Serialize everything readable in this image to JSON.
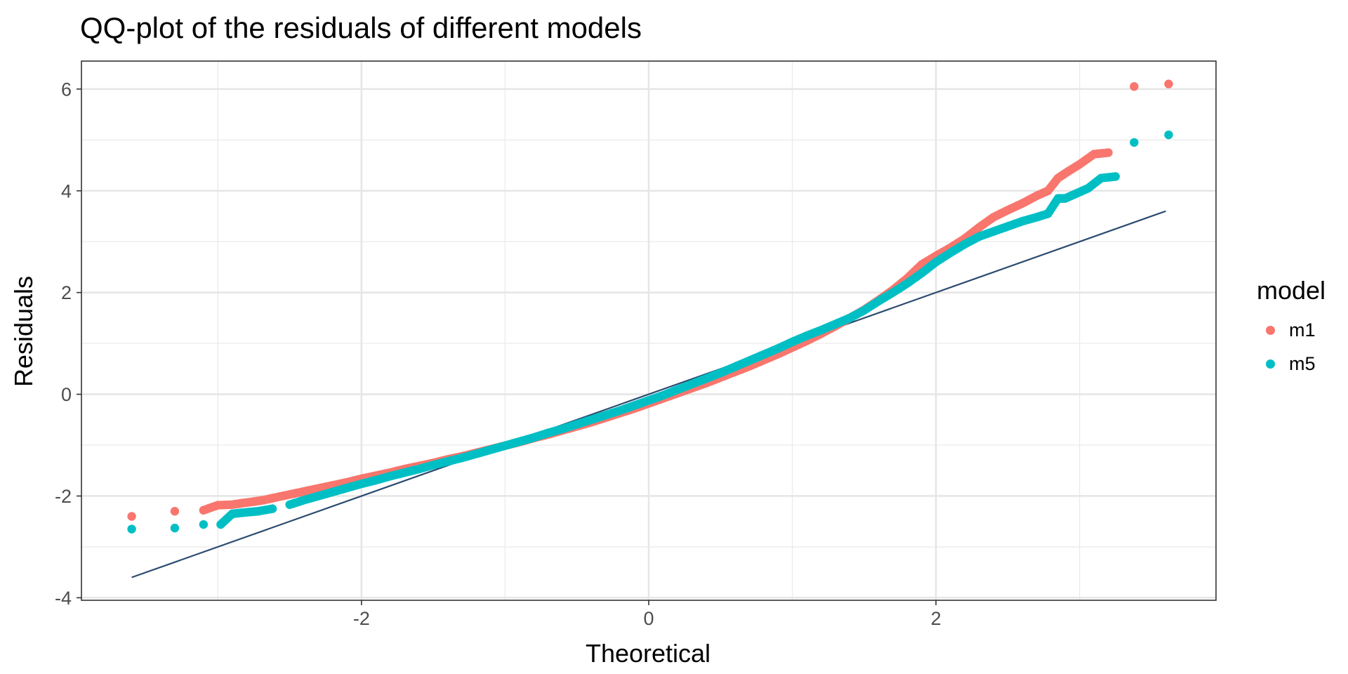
{
  "chart_data": {
    "type": "scatter",
    "title": "QQ-plot of the residuals of different models",
    "xlabel": "Theoretical",
    "ylabel": "Residuals",
    "xlim": [
      -3.95,
      3.95
    ],
    "ylim": [
      -4.05,
      6.55
    ],
    "x_ticks": [
      -2,
      0,
      2
    ],
    "x_tick_labels": [
      "-2",
      "0",
      "2"
    ],
    "y_ticks": [
      -4,
      -2,
      0,
      2,
      4,
      6
    ],
    "y_tick_labels": [
      "-4",
      "-2",
      "0",
      "2",
      "4",
      "6"
    ],
    "grid": true,
    "legend": {
      "title": "model",
      "position": "right"
    },
    "reference_line": {
      "x": [
        -3.6,
        3.6
      ],
      "y": [
        -3.6,
        3.6
      ],
      "color": "#2b4b6f"
    },
    "series": [
      {
        "name": "m1",
        "color": "#f8766d",
        "points": [
          [
            -3.6,
            -2.4
          ],
          [
            -3.3,
            -2.3
          ],
          [
            -3.1,
            -2.28
          ],
          [
            -3.0,
            -2.18
          ],
          [
            -2.9,
            -2.17
          ],
          [
            -2.83,
            -2.14
          ],
          [
            -2.75,
            -2.11
          ],
          [
            -2.68,
            -2.08
          ],
          [
            -2.6,
            -2.03
          ],
          [
            -2.5,
            -1.97
          ],
          [
            -2.4,
            -1.91
          ],
          [
            -2.3,
            -1.85
          ],
          [
            -2.2,
            -1.79
          ],
          [
            -2.1,
            -1.73
          ],
          [
            -2.0,
            -1.66
          ],
          [
            -1.9,
            -1.6
          ],
          [
            -1.8,
            -1.54
          ],
          [
            -1.7,
            -1.47
          ],
          [
            -1.6,
            -1.41
          ],
          [
            -1.5,
            -1.35
          ],
          [
            -1.4,
            -1.28
          ],
          [
            -1.3,
            -1.22
          ],
          [
            -1.2,
            -1.15
          ],
          [
            -1.1,
            -1.08
          ],
          [
            -1.0,
            -1.01
          ],
          [
            -0.9,
            -0.94
          ],
          [
            -0.8,
            -0.86
          ],
          [
            -0.7,
            -0.79
          ],
          [
            -0.6,
            -0.71
          ],
          [
            -0.5,
            -0.63
          ],
          [
            -0.4,
            -0.55
          ],
          [
            -0.3,
            -0.46
          ],
          [
            -0.2,
            -0.37
          ],
          [
            -0.1,
            -0.28
          ],
          [
            0.0,
            -0.18
          ],
          [
            0.1,
            -0.08
          ],
          [
            0.2,
            0.02
          ],
          [
            0.3,
            0.12
          ],
          [
            0.4,
            0.22
          ],
          [
            0.5,
            0.33
          ],
          [
            0.6,
            0.44
          ],
          [
            0.7,
            0.55
          ],
          [
            0.8,
            0.67
          ],
          [
            0.9,
            0.79
          ],
          [
            1.0,
            0.92
          ],
          [
            1.1,
            1.05
          ],
          [
            1.2,
            1.19
          ],
          [
            1.3,
            1.34
          ],
          [
            1.4,
            1.5
          ],
          [
            1.5,
            1.66
          ],
          [
            1.6,
            1.85
          ],
          [
            1.7,
            2.05
          ],
          [
            1.8,
            2.28
          ],
          [
            1.9,
            2.55
          ],
          [
            2.0,
            2.72
          ],
          [
            2.1,
            2.88
          ],
          [
            2.2,
            3.06
          ],
          [
            2.3,
            3.28
          ],
          [
            2.4,
            3.48
          ],
          [
            2.5,
            3.62
          ],
          [
            2.6,
            3.75
          ],
          [
            2.7,
            3.9
          ],
          [
            2.78,
            4.0
          ],
          [
            2.85,
            4.25
          ],
          [
            2.92,
            4.38
          ],
          [
            3.0,
            4.52
          ],
          [
            3.1,
            4.72
          ],
          [
            3.2,
            4.75
          ],
          [
            3.38,
            6.05
          ],
          [
            3.62,
            6.1
          ]
        ]
      },
      {
        "name": "m5",
        "color": "#00bfc4",
        "points": [
          [
            -3.6,
            -2.65
          ],
          [
            -3.3,
            -2.63
          ],
          [
            -3.1,
            -2.56
          ],
          [
            -2.98,
            -2.56
          ],
          [
            -2.9,
            -2.35
          ],
          [
            -2.8,
            -2.32
          ],
          [
            -2.72,
            -2.3
          ],
          [
            -2.62,
            -2.25
          ],
          [
            -2.5,
            -2.17
          ],
          [
            -2.4,
            -2.08
          ],
          [
            -2.3,
            -2.0
          ],
          [
            -2.2,
            -1.92
          ],
          [
            -2.1,
            -1.84
          ],
          [
            -2.0,
            -1.76
          ],
          [
            -1.9,
            -1.69
          ],
          [
            -1.8,
            -1.61
          ],
          [
            -1.7,
            -1.54
          ],
          [
            -1.6,
            -1.47
          ],
          [
            -1.5,
            -1.39
          ],
          [
            -1.4,
            -1.32
          ],
          [
            -1.3,
            -1.25
          ],
          [
            -1.2,
            -1.17
          ],
          [
            -1.1,
            -1.09
          ],
          [
            -1.0,
            -1.01
          ],
          [
            -0.9,
            -0.93
          ],
          [
            -0.8,
            -0.85
          ],
          [
            -0.7,
            -0.76
          ],
          [
            -0.6,
            -0.68
          ],
          [
            -0.5,
            -0.59
          ],
          [
            -0.4,
            -0.5
          ],
          [
            -0.3,
            -0.41
          ],
          [
            -0.2,
            -0.32
          ],
          [
            -0.1,
            -0.22
          ],
          [
            0.0,
            -0.12
          ],
          [
            0.1,
            -0.02
          ],
          [
            0.2,
            0.09
          ],
          [
            0.3,
            0.2
          ],
          [
            0.4,
            0.31
          ],
          [
            0.5,
            0.42
          ],
          [
            0.6,
            0.54
          ],
          [
            0.7,
            0.66
          ],
          [
            0.8,
            0.78
          ],
          [
            0.9,
            0.9
          ],
          [
            1.0,
            1.03
          ],
          [
            1.1,
            1.15
          ],
          [
            1.2,
            1.26
          ],
          [
            1.3,
            1.38
          ],
          [
            1.4,
            1.5
          ],
          [
            1.5,
            1.65
          ],
          [
            1.6,
            1.83
          ],
          [
            1.7,
            2.0
          ],
          [
            1.8,
            2.18
          ],
          [
            1.9,
            2.38
          ],
          [
            2.0,
            2.6
          ],
          [
            2.1,
            2.78
          ],
          [
            2.2,
            2.95
          ],
          [
            2.3,
            3.1
          ],
          [
            2.4,
            3.2
          ],
          [
            2.5,
            3.3
          ],
          [
            2.6,
            3.4
          ],
          [
            2.7,
            3.48
          ],
          [
            2.78,
            3.55
          ],
          [
            2.85,
            3.85
          ],
          [
            2.9,
            3.85
          ],
          [
            2.98,
            3.95
          ],
          [
            3.06,
            4.05
          ],
          [
            3.15,
            4.25
          ],
          [
            3.25,
            4.28
          ],
          [
            3.38,
            4.95
          ],
          [
            3.62,
            5.1
          ]
        ]
      }
    ]
  }
}
